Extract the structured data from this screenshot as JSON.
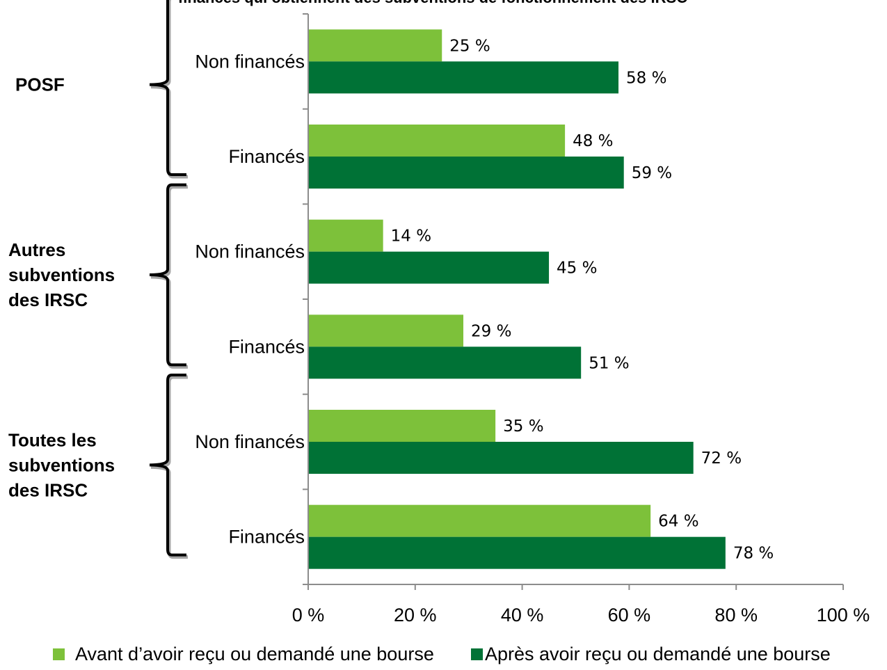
{
  "chart_data": {
    "type": "bar",
    "orientation": "horizontal",
    "title": "financés qui obtiennent des subventions de fonctionnement des IRSC",
    "xlim": [
      0,
      100
    ],
    "x_ticks": [
      0,
      20,
      40,
      60,
      80,
      100
    ],
    "x_tick_labels": [
      "0 %",
      "20 %",
      "40 %",
      "60 %",
      "80 %",
      "100 %"
    ],
    "legend_placement": "bottom",
    "value_suffix": " %",
    "grid": false,
    "series": [
      {
        "name": "Avant d’avoir reçu ou demandé une bourse",
        "color": "#7DC13A"
      },
      {
        "name": "Après avoir reçu ou demandé une bourse",
        "color": "#007236"
      }
    ],
    "groups": [
      {
        "label_lines": [
          "POSF"
        ],
        "categories": [
          {
            "label": "Non financés",
            "values": [
              25,
              58
            ],
            "value_labels": [
              "25 %",
              "58 %"
            ]
          },
          {
            "label": "Financés",
            "values": [
              48,
              59
            ],
            "value_labels": [
              "48 %",
              "59 %"
            ]
          }
        ]
      },
      {
        "label_lines": [
          "Autres",
          "subventions",
          "des IRSC"
        ],
        "categories": [
          {
            "label": "Non financés",
            "values": [
              14,
              45
            ],
            "value_labels": [
              "14 %",
              "45 %"
            ]
          },
          {
            "label": "Financés",
            "values": [
              29,
              51
            ],
            "value_labels": [
              "29 %",
              "51 %"
            ]
          }
        ]
      },
      {
        "label_lines": [
          "Toutes les",
          "subventions",
          "des IRSC"
        ],
        "categories": [
          {
            "label": "Non financés",
            "values": [
              35,
              72
            ],
            "value_labels": [
              "35 %",
              "72 %"
            ]
          },
          {
            "label": "Financés",
            "values": [
              64,
              78
            ],
            "value_labels": [
              "64 %",
              "78 %"
            ]
          }
        ]
      }
    ]
  }
}
